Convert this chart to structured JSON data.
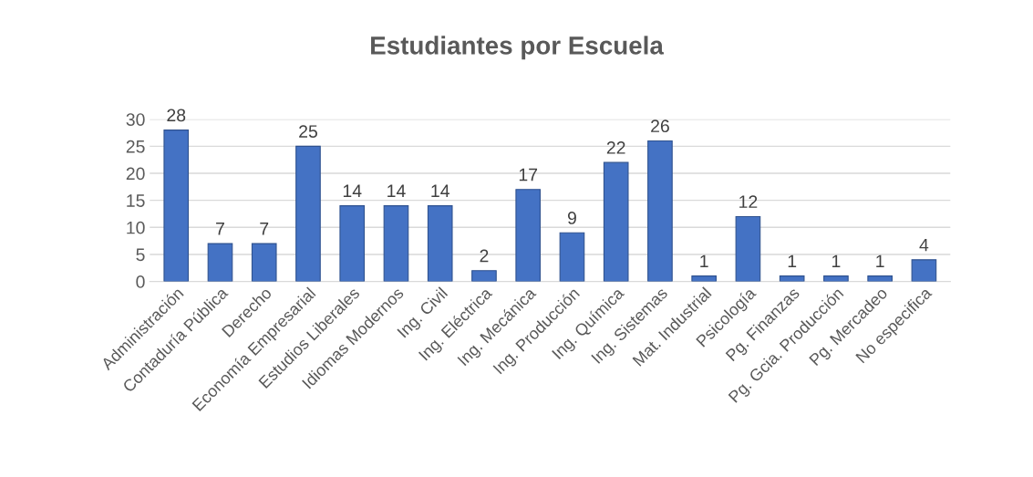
{
  "chart_data": {
    "type": "bar",
    "title": "Estudiantes por Escuela",
    "categories": [
      "Administración",
      "Contaduría Pública",
      "Derecho",
      "Economía Empresarial",
      "Estudios Liberales",
      "Idiomas Modernos",
      "Ing. Civil",
      "Ing. Eléctrica",
      "Ing. Mecánica",
      "Ing. Producción",
      "Ing. Química",
      "Ing. Sistemas",
      "Mat. Industrial",
      "Psicología",
      "Pg. Finanzas",
      "Pg. Gcia. Producción",
      "Pg. Mercadeo",
      "No especifica"
    ],
    "values": [
      28,
      7,
      7,
      25,
      14,
      14,
      14,
      2,
      17,
      9,
      22,
      26,
      1,
      12,
      1,
      1,
      1,
      4
    ],
    "color": "#4472c4",
    "ylim": [
      0,
      30
    ],
    "yticks": [
      0,
      5,
      10,
      15,
      20,
      25,
      30
    ],
    "grid": "y",
    "data_labels": true,
    "legend": false
  }
}
